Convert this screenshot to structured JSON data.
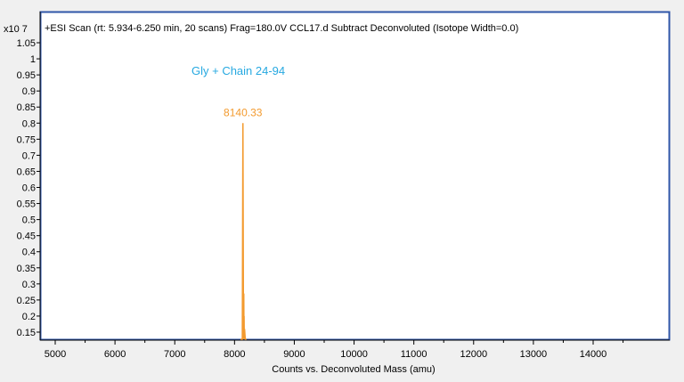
{
  "chart_data": {
    "type": "line",
    "title": "+ESI Scan (rt: 5.934-6.250 min, 20 scans) Frag=180.0V CCL17.d  Subtract Deconvoluted (Isotope Width=0.0)",
    "annotation": "Gly + Chain 24-94",
    "y_multiplier": "x10 7",
    "xlabel": "Counts vs. Deconvoluted Mass (amu)",
    "ylabel": "",
    "xlim": [
      4700,
      15200
    ],
    "ylim": [
      0.12,
      1.1
    ],
    "x_ticks": [
      5000,
      6000,
      7000,
      8000,
      9000,
      10000,
      11000,
      12000,
      13000,
      14000
    ],
    "y_ticks": [
      1.05,
      1,
      0.95,
      0.9,
      0.85,
      0.8,
      0.75,
      0.7,
      0.65,
      0.6,
      0.55,
      0.5,
      0.45,
      0.4,
      0.35,
      0.3,
      0.25,
      0.2,
      0.15
    ],
    "x_tick_labels": [
      "5000",
      "6000",
      "7000",
      "8000",
      "9000",
      "10000",
      "11000",
      "12000",
      "13000",
      "14000"
    ],
    "y_tick_labels": [
      "1.05",
      "1",
      "0.95",
      "0.9",
      "0.85",
      "0.8",
      "0.75",
      "0.7",
      "0.65",
      "0.6",
      "0.55",
      "0.5",
      "0.45",
      "0.4",
      "0.35",
      "0.3",
      "0.25",
      "0.2",
      "0.15"
    ],
    "series": [
      {
        "color": "#f39a2e",
        "x": [
          8100,
          8130,
          8140.33,
          8150,
          8155,
          8158,
          8160,
          8163,
          8168,
          8180,
          8200
        ],
        "y": [
          0.12,
          0.12,
          0.8,
          0.12,
          0.27,
          0.12,
          0.2,
          0.12,
          0.16,
          0.12,
          0.12
        ]
      }
    ],
    "peak_label": {
      "x": 8140.33,
      "y": 0.8,
      "text": "8140.33"
    },
    "grid": false,
    "colors": {
      "frame": "#2f56a8",
      "axis": "#000000",
      "annotation": "#27a9e1",
      "peak": "#f39a2e"
    }
  }
}
